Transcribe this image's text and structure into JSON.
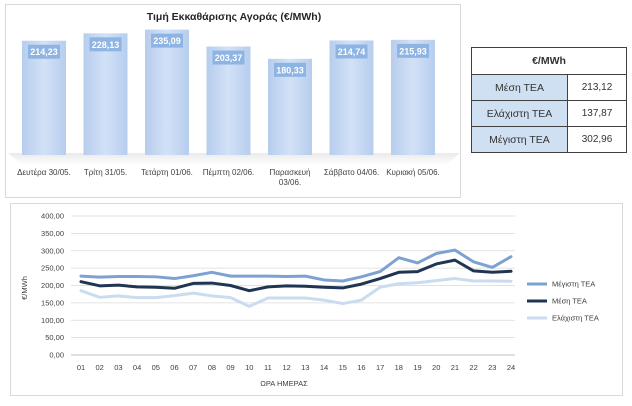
{
  "bar_chart": {
    "title": "Τιμή Εκκαθάρισης Αγοράς (€/MWh)",
    "bar_color": "#c5d8f1",
    "label_box_color": "#8eb4e3"
  },
  "summary_table": {
    "header": "€/MWh",
    "rows": [
      {
        "label": "Μέση ΤΕΑ",
        "value": "213,12"
      },
      {
        "label": "Ελάχιστη ΤΕΑ",
        "value": "137,87"
      },
      {
        "label": "Μέγιστη ΤΕΑ",
        "value": "302,96"
      }
    ]
  },
  "chart_data": [
    {
      "type": "bar",
      "title": "Τιμή Εκκαθάρισης Αγοράς (€/MWh)",
      "categories": [
        "Δευτέρα 30/05.",
        "Τρίτη 31/05.",
        "Τετάρτη 01/06.",
        "Πέμπτη 02/06.",
        "Παρασκευή 03/06.",
        "Σάββατο 04/06.",
        "Κυριακή 05/06."
      ],
      "values": [
        214.23,
        228.13,
        235.09,
        203.37,
        180.33,
        214.74,
        215.93
      ],
      "data_labels": [
        "214,23",
        "228,13",
        "235,09",
        "203,37",
        "180,33",
        "214,74",
        "215,93"
      ],
      "ylim": [
        0,
        240
      ]
    },
    {
      "type": "line",
      "xlabel": "ΩΡΑ ΗΜΕΡΑΣ",
      "ylabel": "€/MWh",
      "ylim": [
        0,
        400
      ],
      "yticks": [
        "0,00",
        "50,00",
        "100,00",
        "150,00",
        "200,00",
        "250,00",
        "300,00",
        "350,00",
        "400,00"
      ],
      "x": [
        "01",
        "02",
        "03",
        "04",
        "05",
        "06",
        "07",
        "08",
        "09",
        "10",
        "11",
        "12",
        "13",
        "14",
        "15",
        "16",
        "17",
        "18",
        "19",
        "20",
        "21",
        "22",
        "23",
        "24"
      ],
      "grid": true,
      "legend": "right",
      "series": [
        {
          "name": "Μέγιστη ΤΕΑ",
          "color": "#7da2d1",
          "values": [
            227,
            224,
            226,
            226,
            225,
            220,
            228,
            238,
            227,
            227,
            227,
            226,
            227,
            216,
            213,
            225,
            240,
            280,
            265,
            292,
            302,
            268,
            252,
            283
          ]
        },
        {
          "name": "Μέση ΤΕΑ",
          "color": "#1f3552",
          "values": [
            211,
            199,
            201,
            196,
            195,
            192,
            206,
            207,
            200,
            185,
            196,
            199,
            198,
            195,
            193,
            204,
            220,
            238,
            240,
            262,
            273,
            242,
            238,
            241
          ]
        },
        {
          "name": "Ελάχιστη ΤΕΑ",
          "color": "#c9dcf0",
          "values": [
            185,
            166,
            170,
            165,
            165,
            171,
            178,
            170,
            165,
            140,
            164,
            164,
            164,
            158,
            148,
            158,
            195,
            205,
            208,
            214,
            220,
            213,
            213,
            212
          ]
        }
      ]
    }
  ]
}
